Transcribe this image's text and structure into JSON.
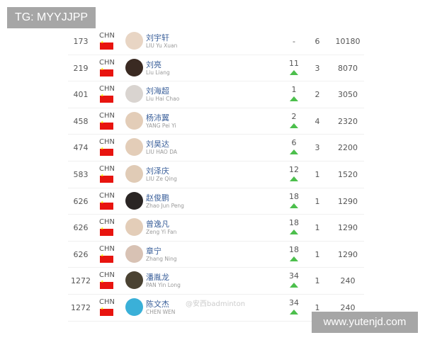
{
  "watermarks": {
    "top_left": "TG: MYYJJPP",
    "bottom_right": "www.yutenjd.com",
    "weibo": "@安西badminton"
  },
  "colors": {
    "flag": "#e8140f",
    "up_arrow": "#4cbf4c",
    "name": "#3a5f9a"
  },
  "rows": [
    {
      "rank": "173",
      "nation": "CHN",
      "name_cn": "刘宇轩",
      "name_en": "LIU Yu Xuan",
      "change": "-",
      "up": false,
      "count": "6",
      "points": "10180",
      "avatar": "#e8d5c4"
    },
    {
      "rank": "219",
      "nation": "CHN",
      "name_cn": "刘亮",
      "name_en": "Liu Liang",
      "change": "11",
      "up": true,
      "count": "3",
      "points": "8070",
      "avatar": "#3a2a22"
    },
    {
      "rank": "401",
      "nation": "CHN",
      "name_cn": "刘海超",
      "name_en": "Liu Hai Chao",
      "change": "1",
      "up": true,
      "count": "2",
      "points": "3050",
      "avatar": "#d9d4d0"
    },
    {
      "rank": "458",
      "nation": "CHN",
      "name_cn": "杨沛翼",
      "name_en": "YANG Pei Yi",
      "change": "2",
      "up": true,
      "count": "4",
      "points": "2320",
      "avatar": "#e3cdb8"
    },
    {
      "rank": "474",
      "nation": "CHN",
      "name_cn": "刘昊达",
      "name_en": "LIU HAO DA",
      "change": "6",
      "up": true,
      "count": "3",
      "points": "2200",
      "avatar": "#e3cdb8"
    },
    {
      "rank": "583",
      "nation": "CHN",
      "name_cn": "刘泽庆",
      "name_en": "LIU Ze Qing",
      "change": "12",
      "up": true,
      "count": "1",
      "points": "1520",
      "avatar": "#e0cbb6"
    },
    {
      "rank": "626",
      "nation": "CHN",
      "name_cn": "赵俊鹏",
      "name_en": "Zhao Jun Peng",
      "change": "18",
      "up": true,
      "count": "1",
      "points": "1290",
      "avatar": "#2a2524"
    },
    {
      "rank": "626",
      "nation": "CHN",
      "name_cn": "曾逸凡",
      "name_en": "Zeng Yi Fan",
      "change": "18",
      "up": true,
      "count": "1",
      "points": "1290",
      "avatar": "#e3cdb8"
    },
    {
      "rank": "626",
      "nation": "CHN",
      "name_cn": "章宁",
      "name_en": "Zhang Ning",
      "change": "18",
      "up": true,
      "count": "1",
      "points": "1290",
      "avatar": "#d8c2b4"
    },
    {
      "rank": "1272",
      "nation": "CHN",
      "name_cn": "潘胤龙",
      "name_en": "PAN Yin Long",
      "change": "34",
      "up": true,
      "count": "1",
      "points": "240",
      "avatar": "#4a4232"
    },
    {
      "rank": "1272",
      "nation": "CHN",
      "name_cn": "陈文杰",
      "name_en": "CHEN WEN",
      "change": "34",
      "up": true,
      "count": "1",
      "points": "240",
      "avatar": "#3ab0d8"
    }
  ]
}
